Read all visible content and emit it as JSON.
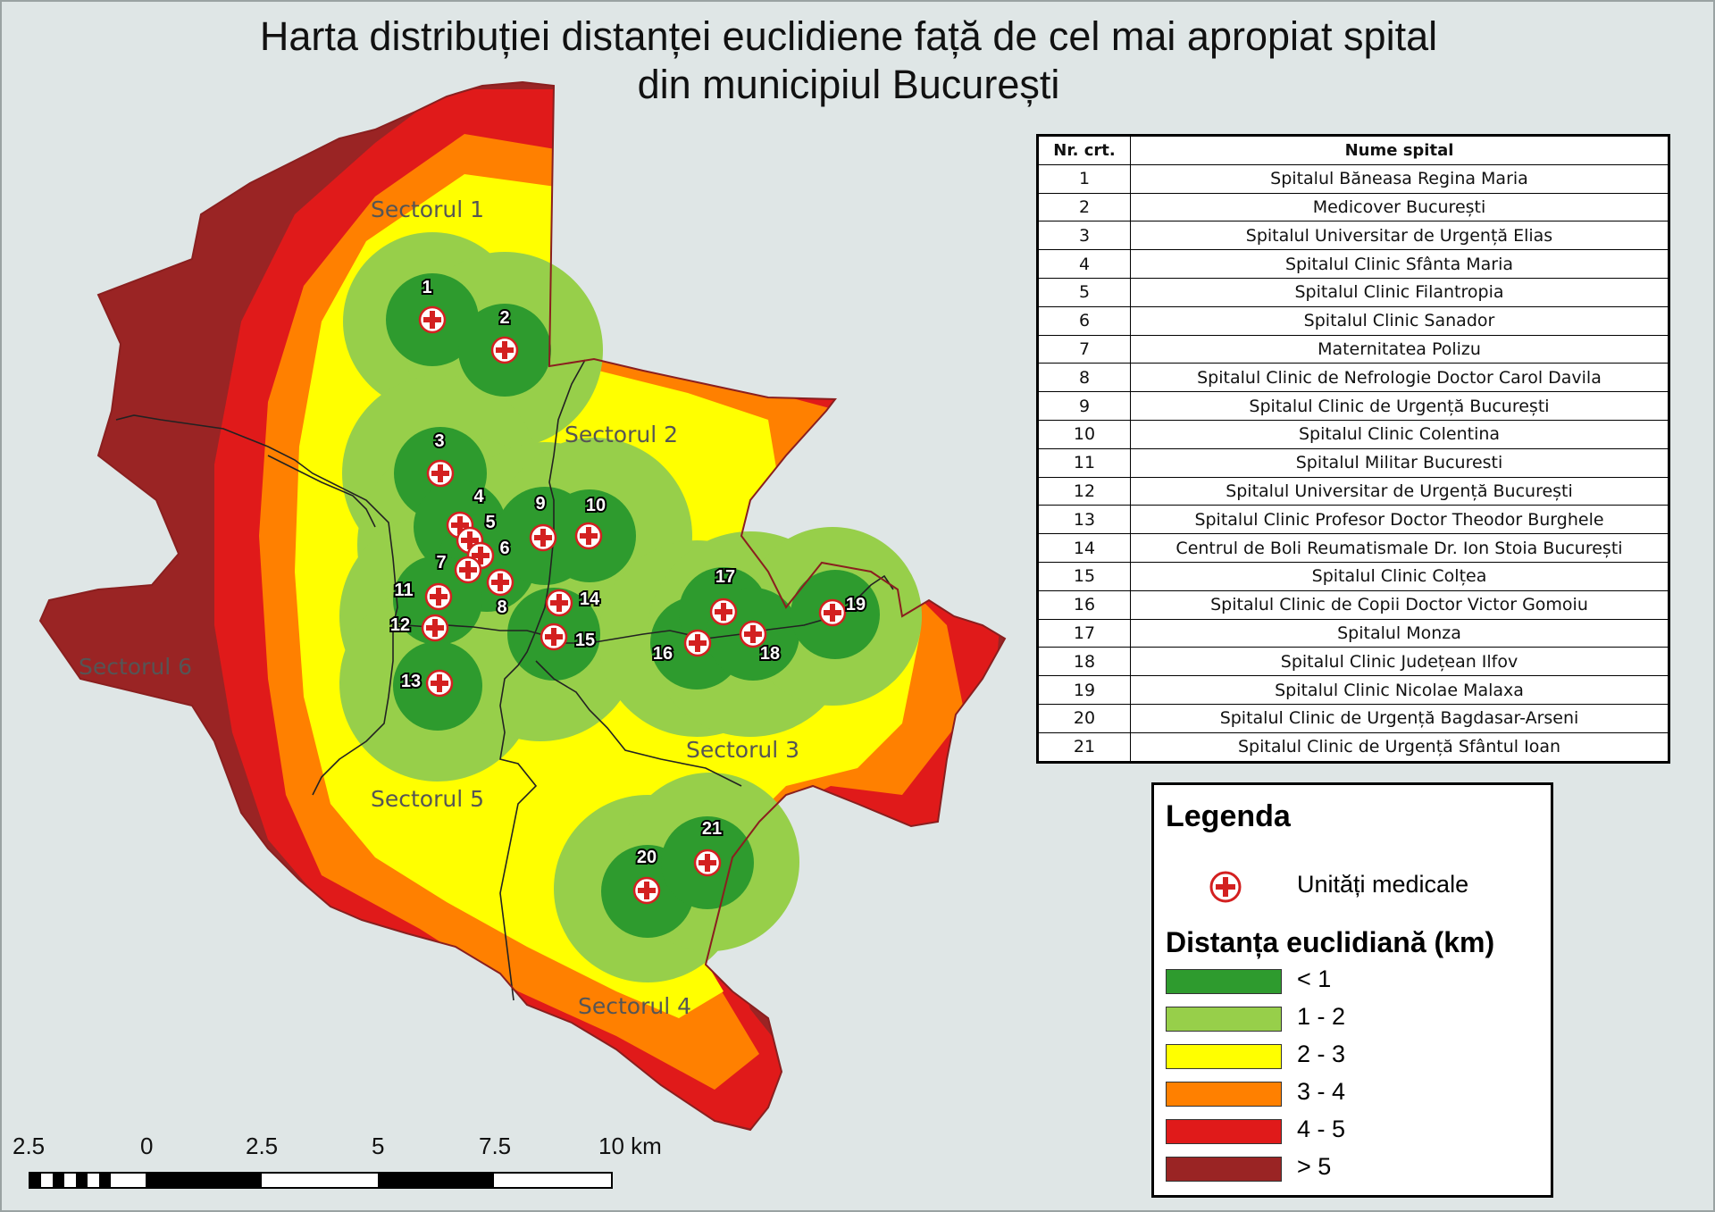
{
  "title_line1": "Harta distribuției distanței euclidiene față de cel mai apropiat spital",
  "title_line2": "din municipiul București",
  "sectors": [
    "Sectorul 1",
    "Sectorul 2",
    "Sectorul 3",
    "Sectorul 4",
    "Sectorul 5",
    "Sectorul 6"
  ],
  "table": {
    "col_nr": "Nr. crt.",
    "col_name": "Nume spital",
    "rows": [
      {
        "nr": "1",
        "name": "Spitalul Băneasa Regina Maria"
      },
      {
        "nr": "2",
        "name": "Medicover București"
      },
      {
        "nr": "3",
        "name": "Spitalul Universitar de Urgență Elias"
      },
      {
        "nr": "4",
        "name": "Spitalul Clinic Sfânta Maria"
      },
      {
        "nr": "5",
        "name": "Spitalul Clinic Filantropia"
      },
      {
        "nr": "6",
        "name": "Spitalul Clinic Sanador"
      },
      {
        "nr": "7",
        "name": "Maternitatea Polizu"
      },
      {
        "nr": "8",
        "name": "Spitalul Clinic de Nefrologie Doctor Carol Davila"
      },
      {
        "nr": "9",
        "name": "Spitalul Clinic de Urgență București"
      },
      {
        "nr": "10",
        "name": "Spitalul Clinic Colentina"
      },
      {
        "nr": "11",
        "name": "Spitalul Militar Bucuresti"
      },
      {
        "nr": "12",
        "name": "Spitalul Universitar de Urgență București"
      },
      {
        "nr": "13",
        "name": "Spitalul Clinic Profesor Doctor Theodor Burghele"
      },
      {
        "nr": "14",
        "name": "Centrul de Boli Reumatismale Dr. Ion Stoia București"
      },
      {
        "nr": "15",
        "name": "Spitalul Clinic Colțea"
      },
      {
        "nr": "16",
        "name": "Spitalul Clinic de Copii Doctor Victor Gomoiu"
      },
      {
        "nr": "17",
        "name": "Spitalul Monza"
      },
      {
        "nr": "18",
        "name": "Spitalul Clinic Județean Ilfov"
      },
      {
        "nr": "19",
        "name": "Spitalul Clinic Nicolae Malaxa"
      },
      {
        "nr": "20",
        "name": "Spitalul Clinic de Urgență Bagdasar-Arseni"
      },
      {
        "nr": "21",
        "name": "Spitalul Clinic de Urgență Sfântul Ioan"
      }
    ]
  },
  "legend": {
    "title": "Legenda",
    "marker_label": "Unități medicale",
    "subtitle": "Distanța euclidiană (km)",
    "classes": [
      {
        "label": "< 1",
        "color": "#2e9b2e"
      },
      {
        "label": "1 - 2",
        "color": "#97cf4a"
      },
      {
        "label": "2 - 3",
        "color": "#ffff00"
      },
      {
        "label": "3 - 4",
        "color": "#ff8000"
      },
      {
        "label": "4 - 5",
        "color": "#e01a1a"
      },
      {
        "label": "> 5",
        "color": "#9a2424"
      }
    ]
  },
  "scale_bar": {
    "labels": [
      "2.5",
      "0",
      "2.5",
      "5",
      "7.5",
      "10 km"
    ]
  },
  "hospital_numbers": [
    "1",
    "2",
    "3",
    "4",
    "5",
    "6",
    "7",
    "8",
    "9",
    "10",
    "11",
    "12",
    "13",
    "14",
    "15",
    "16",
    "17",
    "18",
    "19",
    "20",
    "21"
  ]
}
